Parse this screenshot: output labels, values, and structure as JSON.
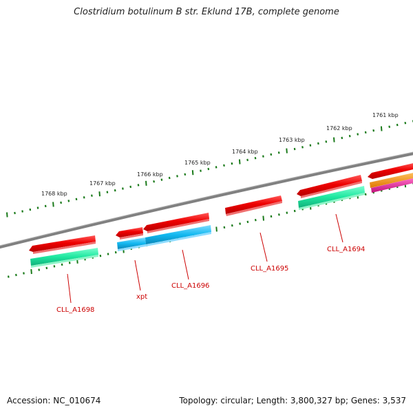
{
  "title": "Clostridium botulinum B str. Eklund 17B, complete genome",
  "footer": {
    "accession": "Accession: NC_010674",
    "summary": "Topology: circular; Length: 3,800,327 bp; Genes: 3,537"
  },
  "colors": {
    "backbone": "#808080",
    "tick": "#1a7a1a",
    "gene_red": "#ee0000",
    "gene_green": "#1fe8a0",
    "gene_blue": "#12b8f0",
    "gene_orange": "#f08a00",
    "gene_pink": "#e0209a",
    "label_red": "#cc0000"
  },
  "kbp_labels": [
    "1768 kbp",
    "1767 kbp",
    "1766 kbp",
    "1765 kbp",
    "1764 kbp",
    "1763 kbp",
    "1762 kbp",
    "1761 kbp"
  ],
  "gene_labels": [
    "CLL_A1698",
    "xpt",
    "CLL_A1696",
    "CLL_A1695",
    "CLL_A1694"
  ]
}
